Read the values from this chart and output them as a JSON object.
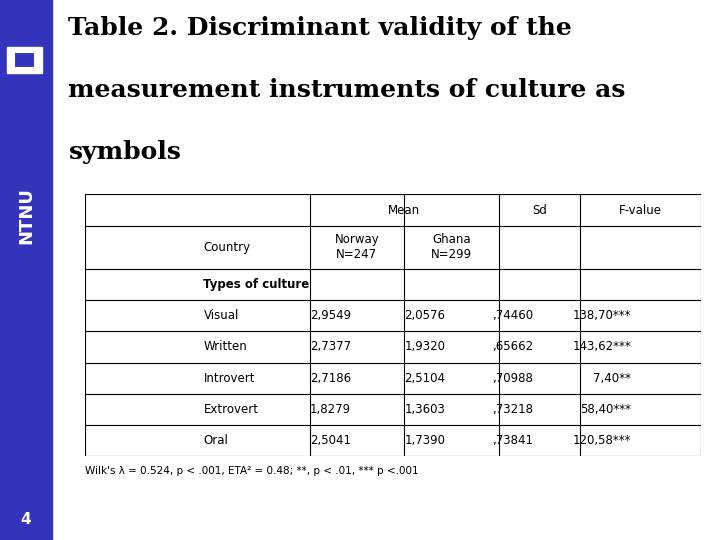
{
  "title_line1": "Table 2. Discriminant validity of the",
  "title_line2": "measurement instruments of culture as",
  "title_line3": "symbols",
  "bg_color": "#ffffff",
  "sidebar_color": "#3333bb",
  "title_color": "#000000",
  "title_fontsize": 18,
  "footnote": "Wilk's λ = 0.524, p < .001, ETA² = 0.48; **, p < .01, *** p <.001",
  "page_number": "4",
  "data_rows": [
    [
      "Visual",
      "2,9549",
      "2,0576",
      ",74460",
      "138,70***"
    ],
    [
      "Written",
      "2,7377",
      "1,9320",
      ",65662",
      "143,62***"
    ],
    [
      "Introvert",
      "2,7186",
      "2,5104",
      ",70988",
      "7,40**"
    ],
    [
      "Extrovert",
      "1,8279",
      "1,3603",
      ",73218",
      "58,40***"
    ],
    [
      "Oral",
      "2,5041",
      "1,7390",
      ",73841",
      "120,58***"
    ]
  ]
}
